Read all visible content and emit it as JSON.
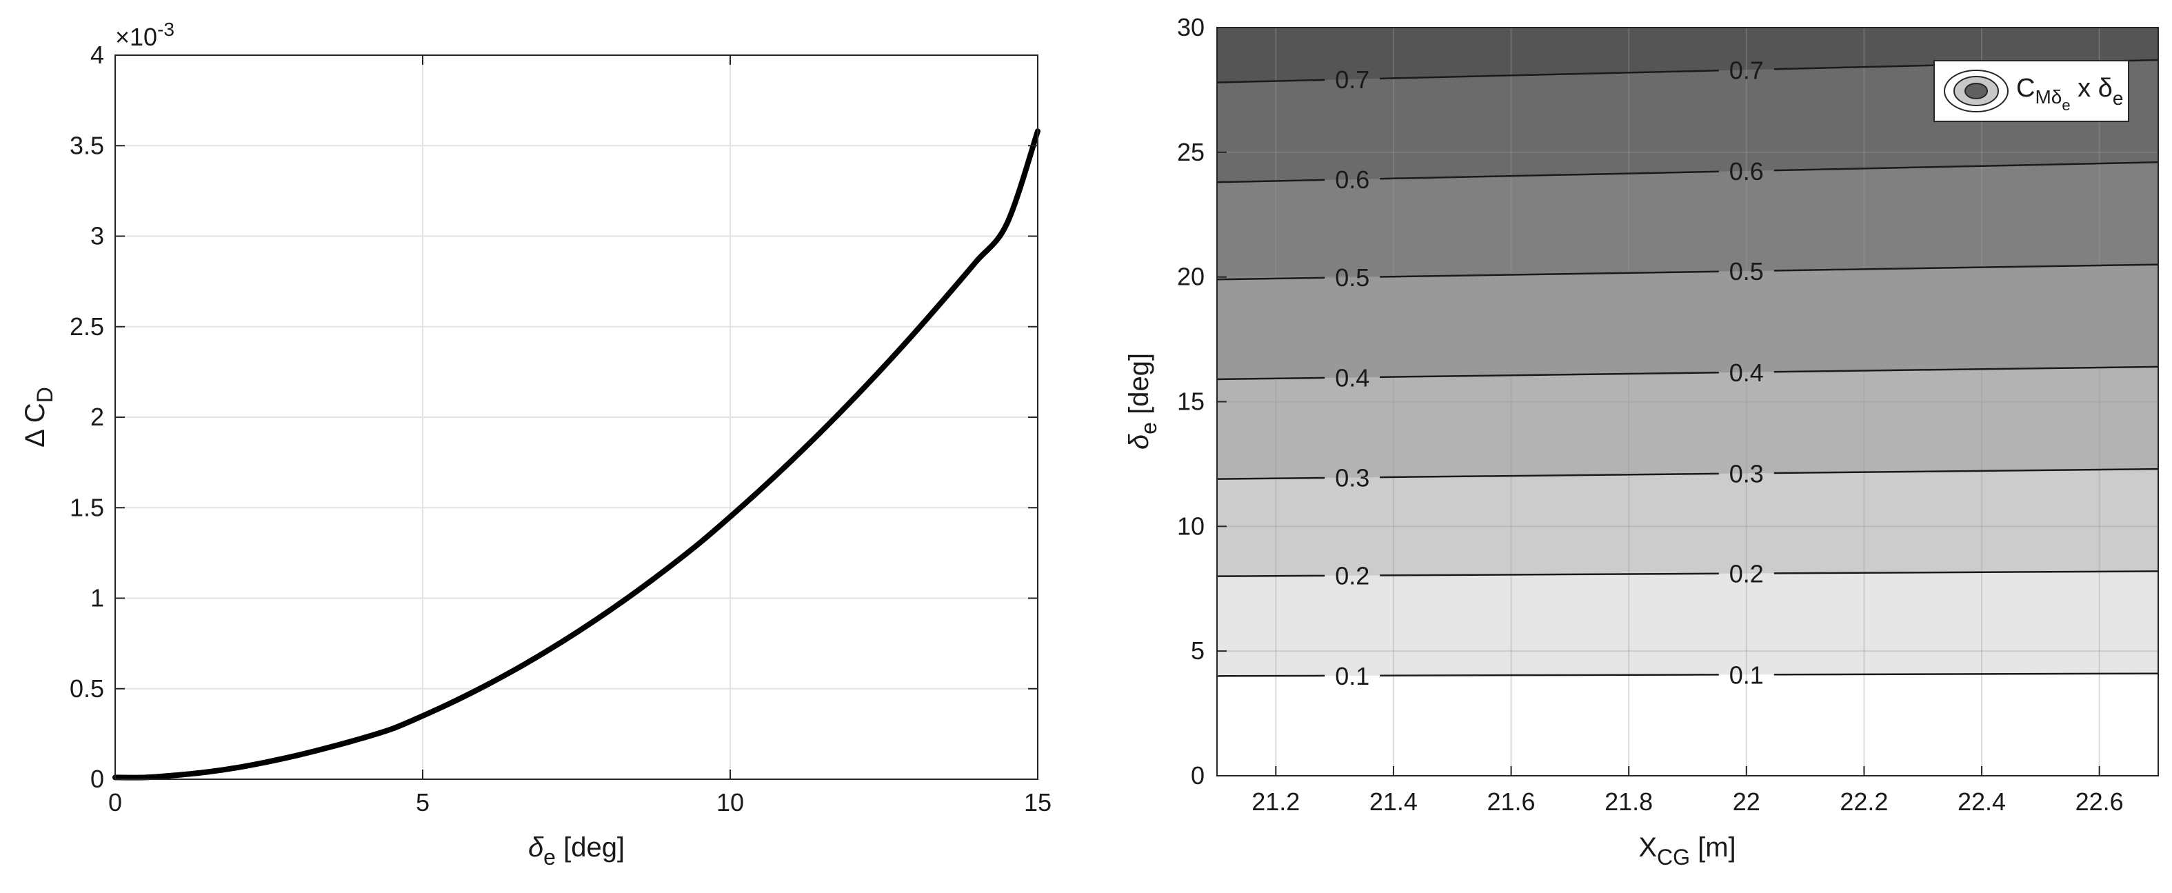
{
  "chart_data": [
    {
      "type": "line",
      "xlabel": {
        "symbol": "δ",
        "subscript": "e",
        "text": " [deg]"
      },
      "ylabel": {
        "text": "Δ C",
        "subscript": "D"
      },
      "y_exponent_label": {
        "base": "×10",
        "exponent": "-3"
      },
      "xlim": [
        0,
        15
      ],
      "ylim": [
        0,
        0.004
      ],
      "xticks": [
        0,
        5,
        10,
        15
      ],
      "xtick_labels": [
        "0",
        "5",
        "10",
        "15"
      ],
      "yticks": [
        0,
        0.0005,
        0.001,
        0.0015,
        0.002,
        0.0025,
        0.003,
        0.0035,
        0.004
      ],
      "ytick_labels": [
        "0",
        "0.5",
        "1",
        "1.5",
        "2",
        "2.5",
        "3",
        "3.5",
        "4"
      ],
      "grid": true,
      "line_color": "#000000",
      "series": [
        {
          "x": [
            0,
            0.5,
            1,
            1.5,
            2,
            2.5,
            3,
            3.5,
            4,
            4.5,
            5,
            5.5,
            6,
            6.5,
            7,
            7.5,
            8,
            8.5,
            9,
            9.5,
            10,
            10.5,
            11,
            11.5,
            12,
            12.5,
            13,
            13.5,
            14,
            14.5,
            15
          ],
          "y": [
            1e-05,
            1e-05,
            2.25e-05,
            4e-05,
            6.5e-05,
            9.75e-05,
            0.000135,
            0.000178,
            0.000225,
            0.000278,
            0.00035,
            0.000428,
            0.000513,
            0.000605,
            0.000704,
            0.00081,
            0.000923,
            0.001043,
            0.00117,
            0.001304,
            0.00145,
            0.001602,
            0.001761,
            0.001927,
            0.0021,
            0.00228,
            0.002467,
            0.002661,
            0.00286,
            0.00307,
            0.00358
          ]
        }
      ]
    },
    {
      "type": "contour",
      "xlabel": {
        "text": "X",
        "subscript": "CG",
        "suffix": " [m]"
      },
      "ylabel": {
        "symbol": "δ",
        "subscript": "e",
        "text": " [deg]"
      },
      "xlim": [
        21.1,
        22.7
      ],
      "ylim": [
        0,
        30
      ],
      "xticks": [
        21.2,
        21.4,
        21.6,
        21.8,
        22,
        22.2,
        22.4,
        22.6
      ],
      "xtick_labels": [
        "21.2",
        "21.4",
        "21.6",
        "21.8",
        "22",
        "22.2",
        "22.4",
        "22.6"
      ],
      "yticks": [
        0,
        5,
        10,
        15,
        20,
        25,
        30
      ],
      "ytick_labels": [
        "0",
        "5",
        "10",
        "15",
        "20",
        "25",
        "30"
      ],
      "grid": true,
      "legend": {
        "position": "top-right",
        "symbol": "C",
        "sub1": "Mδ",
        "sub2": "e",
        "mid": " x δ",
        "sub3": "e"
      },
      "levels": [
        {
          "value": 0.1,
          "label": "0.1",
          "y_left": 4.0,
          "y_right": 4.1,
          "fill_below": "#ffffff"
        },
        {
          "value": 0.2,
          "label": "0.2",
          "y_left": 8.0,
          "y_right": 8.2,
          "fill_below": "#e6e6e6"
        },
        {
          "value": 0.3,
          "label": "0.3",
          "y_left": 11.9,
          "y_right": 12.3,
          "fill_below": "#cccccc"
        },
        {
          "value": 0.4,
          "label": "0.4",
          "y_left": 15.9,
          "y_right": 16.4,
          "fill_below": "#b3b3b3"
        },
        {
          "value": 0.5,
          "label": "0.5",
          "y_left": 19.9,
          "y_right": 20.5,
          "fill_below": "#999999"
        },
        {
          "value": 0.6,
          "label": "0.6",
          "y_left": 23.8,
          "y_right": 24.6,
          "fill_below": "#808080"
        },
        {
          "value": 0.7,
          "label": "0.7",
          "y_left": 27.8,
          "y_right": 28.7,
          "fill_below": "#6b6b6b"
        }
      ],
      "top_fill": "#555555",
      "label_x_positions": [
        21.33,
        22.0
      ]
    }
  ]
}
